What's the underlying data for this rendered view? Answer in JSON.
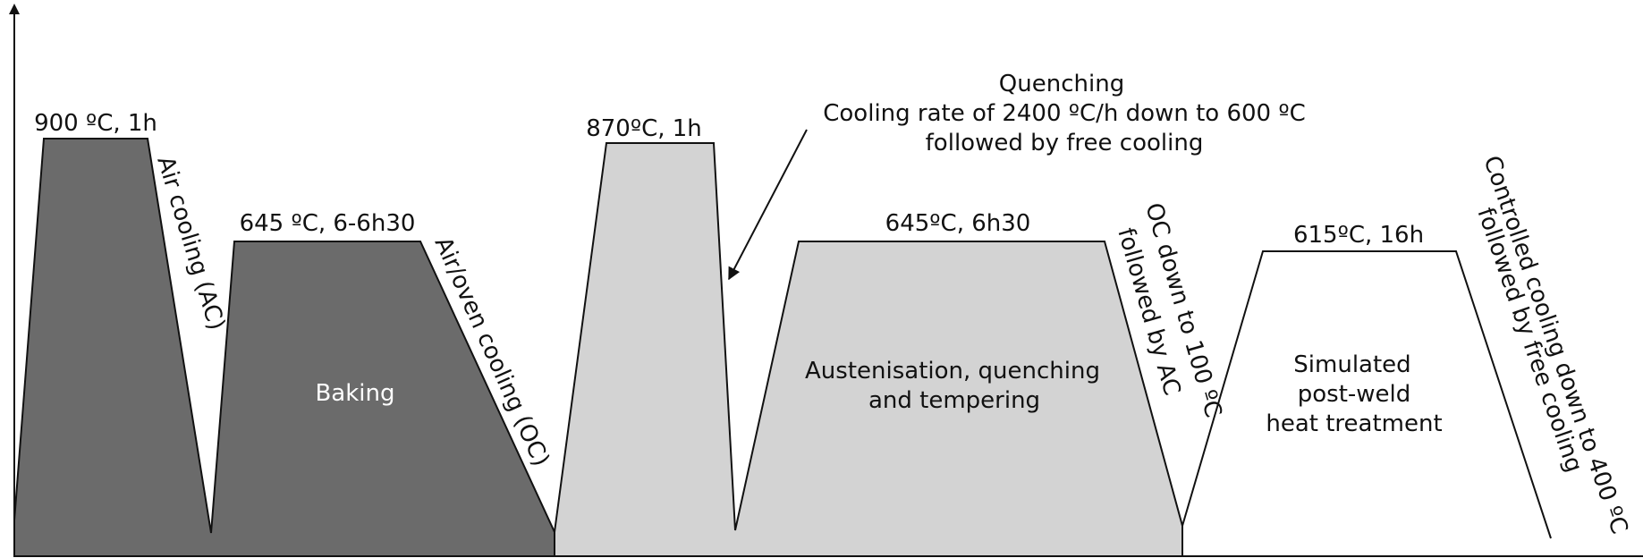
{
  "colors": {
    "dark_fill": "#6b6b6b",
    "light_fill": "#d3d3d3",
    "line": "#111111",
    "baking_label": "#ffffff"
  },
  "segments": {
    "first_hold": "900 ºC, 1h",
    "first_cooling": "Air cooling (AC)",
    "baking_hold": "645 ºC, 6-6h30",
    "baking_cooling": "Air/oven cooling (OC)",
    "austenisation_hold": "870ºC, 1h",
    "tempering_hold": "645ºC, 6h30",
    "tempering_cooling_line1": "OC down to 100 ºC",
    "tempering_cooling_line2": "followed by AC",
    "pwht_hold": "615ºC, 16h",
    "pwht_cooling_line1": "Controlled cooling down to 400 ºC",
    "pwht_cooling_line2": "followed by free cooling"
  },
  "quenching_note": {
    "title": "Quenching",
    "line1": "Cooling rate of 2400 ºC/h down to 600 ºC",
    "line2": "followed by free cooling"
  },
  "zones": {
    "baking": "Baking",
    "aqt_line1": "Austenisation, quenching",
    "aqt_line2": "and tempering",
    "pwht_line1": "Simulated",
    "pwht_line2": "post-weld",
    "pwht_line3": "heat treatment"
  }
}
